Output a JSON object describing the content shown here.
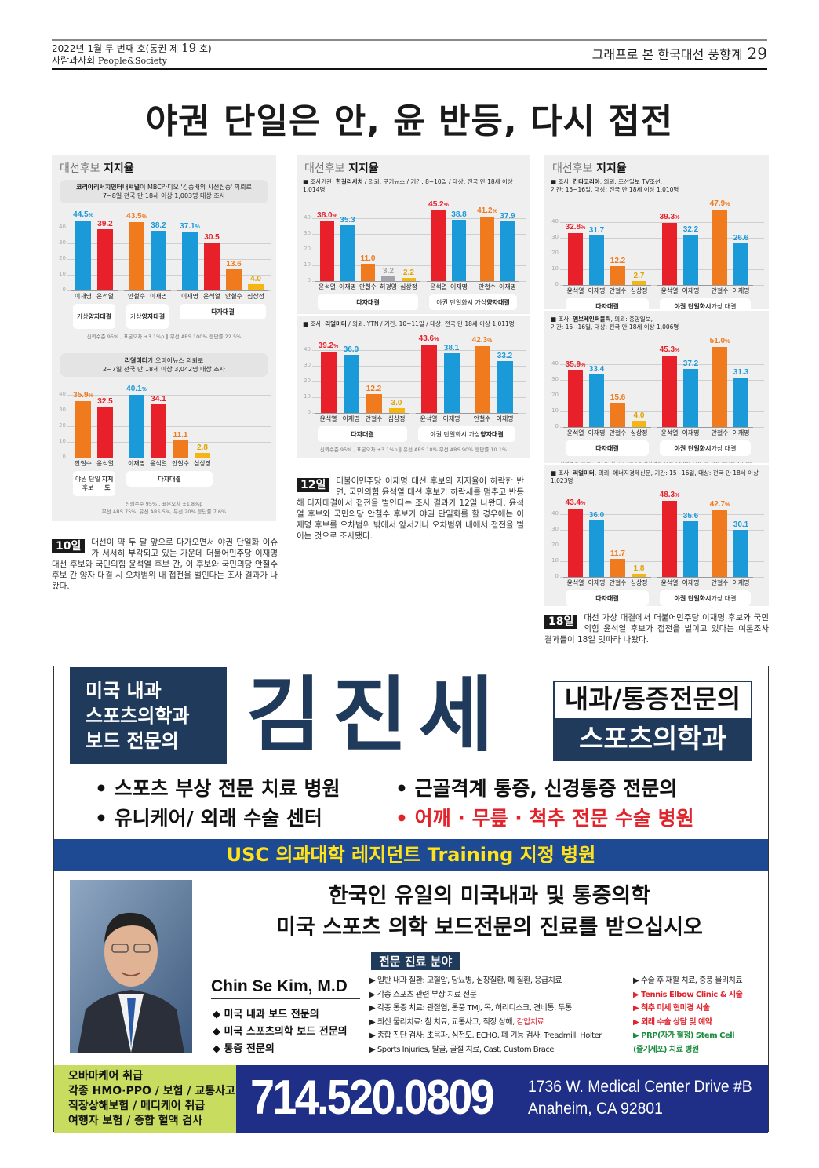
{
  "header": {
    "issue_pre": "2022년 1월 두 번째 호(통권 제 ",
    "issue_num": "19",
    "issue_post": " 호)",
    "paper_kr": "사람과사회 ",
    "paper_en": "People&Society",
    "section": "그래프로 본 한국대선 풍향계",
    "page": "29"
  },
  "headline": "야권 단일은 안, 윤 반등, 다시 접전",
  "palette": {
    "red": "#e8202a",
    "blue": "#1a9ad9",
    "orange": "#f07a1e",
    "yellow": "#f5b614",
    "gray": "#a3a3ab",
    "yellow_label": "#e0a400"
  },
  "chart_data": [
    {
      "type": "bar",
      "title_light": "대선후보",
      "title_bold": "지지율",
      "src_style": "box",
      "source": [
        {
          "t": "코리아리서치인터내셔널",
          "b": true
        },
        {
          "t": "이 MBC라디오 '김종배의 시선집중' 의뢰로\n7~8일 전국 만 18세 이상 1,003명 대상 조사"
        }
      ],
      "yticks": [
        0,
        10,
        20,
        30,
        40
      ],
      "sections": [
        {
          "caption": [
            {
              "t": "가상\n"
            },
            {
              "t": "양자대결",
              "b": true
            }
          ],
          "groups": [
            [
              {
                "name": "이재명",
                "value": 44.5,
                "color": "blue",
                "pct": true
              },
              {
                "name": "윤석열",
                "value": 39.2,
                "color": "red"
              }
            ]
          ]
        },
        {
          "caption": [
            {
              "t": "가상\n"
            },
            {
              "t": "양자대결",
              "b": true
            }
          ],
          "groups": [
            [
              {
                "name": "안철수",
                "value": 43.5,
                "color": "orange",
                "pct": true
              },
              {
                "name": "이재명",
                "value": 38.2,
                "color": "blue"
              }
            ]
          ]
        },
        {
          "caption": [
            {
              "t": "다자대결",
              "b": true
            }
          ],
          "groups": [
            [
              {
                "name": "이재명",
                "value": 37.1,
                "color": "blue",
                "pct": true
              },
              {
                "name": "윤석열",
                "value": 30.5,
                "color": "red"
              },
              {
                "name": "안철수",
                "value": 13.6,
                "color": "orange"
              },
              {
                "name": "심상정",
                "value": 4.0,
                "color": "yellow"
              }
            ]
          ]
        }
      ],
      "footnote": "신뢰수준 95% , 표본오차 ±3.1%p  ‖  무선 ARS 100% 응답률 22.5%"
    },
    {
      "type": "bar",
      "src_style": "box",
      "source": [
        {
          "t": "리얼미터",
          "b": true
        },
        {
          "t": "가 오마이뉴스 의뢰로\n2~7일 전국 만 18세 이상 3,042명 대상 조사"
        }
      ],
      "yticks": [
        0,
        10,
        20,
        30,
        40
      ],
      "sections": [
        {
          "caption": [
            {
              "t": "야권 단일후보\n"
            },
            {
              "t": "지지도",
              "b": true
            }
          ],
          "groups": [
            [
              {
                "name": "안철수",
                "value": 35.9,
                "color": "orange",
                "pct": true
              },
              {
                "name": "윤석열",
                "value": 32.5,
                "color": "red"
              }
            ]
          ]
        },
        {
          "caption": [
            {
              "t": "다자대결",
              "b": true
            }
          ],
          "groups": [
            [
              {
                "name": "이재명",
                "value": 40.1,
                "color": "blue",
                "pct": true
              },
              {
                "name": "윤석열",
                "value": 34.1,
                "color": "red"
              },
              {
                "name": "안철수",
                "value": 11.1,
                "color": "orange"
              },
              {
                "name": "심상정",
                "value": 2.8,
                "color": "yellow"
              }
            ]
          ]
        }
      ],
      "footnote": "신뢰수준 95% , 표본오차 ±1.8%p\n무선 ARS 75%, 유선 ARS 5%, 무선 20% 응답률 7.6%"
    },
    {
      "type": "bar",
      "title_light": "대선후보",
      "title_bold": "지지율",
      "src_style": "line",
      "source": [
        {
          "t": "■ 조사기관: "
        },
        {
          "t": "한길리서치",
          "b": true
        },
        {
          "t": " / 의뢰: 쿠키뉴스 / 기간: 8~10일 / 대상: 전국 만 18세 이상 1,014명"
        }
      ],
      "yticks": [
        0,
        10,
        20,
        30,
        40
      ],
      "sections": [
        {
          "caption": [
            {
              "t": "다자대결",
              "b": true
            }
          ],
          "groups": [
            [
              {
                "name": "윤석열",
                "value": 38.0,
                "color": "red",
                "pct": true
              },
              {
                "name": "이재명",
                "value": 35.3,
                "color": "blue"
              },
              {
                "name": "안철수",
                "value": 11.0,
                "color": "orange"
              },
              {
                "name": "허경영",
                "value": 3.2,
                "color": "gray"
              },
              {
                "name": "심상정",
                "value": 2.2,
                "color": "yellow"
              }
            ]
          ]
        },
        {
          "caption": [
            {
              "t": "야권 단일화시 가상 "
            },
            {
              "t": "양자대결",
              "b": true
            }
          ],
          "groups": [
            [
              {
                "name": "윤석열",
                "value": 45.2,
                "color": "red",
                "pct": true
              },
              {
                "name": "이재명",
                "value": 38.8,
                "color": "blue"
              }
            ],
            [
              {
                "name": "안철수",
                "value": 41.2,
                "color": "orange",
                "pct": true
              },
              {
                "name": "이재명",
                "value": 37.9,
                "color": "blue"
              }
            ]
          ]
        }
      ],
      "footnote": "신뢰수준 95% , 표본오차 ±3.1%p  ‖  유선 전화면접 17.4% 무선 ARS 82.6% 응답률 6.8%"
    },
    {
      "type": "bar",
      "src_style": "line",
      "source": [
        {
          "t": "■ 조사: "
        },
        {
          "t": "리얼미터",
          "b": true
        },
        {
          "t": " / 의뢰: YTN / 기간: 10~11일 / 대상: 전국 만 18세 이상 1,011명"
        }
      ],
      "yticks": [
        0,
        10,
        20,
        30,
        40
      ],
      "sections": [
        {
          "caption": [
            {
              "t": "다자대결",
              "b": true
            }
          ],
          "groups": [
            [
              {
                "name": "윤석열",
                "value": 39.2,
                "color": "red",
                "pct": true
              },
              {
                "name": "이재명",
                "value": 36.9,
                "color": "blue"
              },
              {
                "name": "안철수",
                "value": 12.2,
                "color": "orange"
              },
              {
                "name": "심상정",
                "value": 3.0,
                "color": "yellow"
              }
            ]
          ]
        },
        {
          "caption": [
            {
              "t": "야권 단일화시 가상 "
            },
            {
              "t": "양자대결",
              "b": true
            }
          ],
          "groups": [
            [
              {
                "name": "윤석열",
                "value": 43.6,
                "color": "red",
                "pct": true
              },
              {
                "name": "이재명",
                "value": 38.1,
                "color": "blue"
              }
            ],
            [
              {
                "name": "안철수",
                "value": 42.3,
                "color": "orange",
                "pct": true
              },
              {
                "name": "이재명",
                "value": 33.2,
                "color": "blue"
              }
            ]
          ]
        }
      ],
      "footnote": "신뢰수준 95% , 표본오차 ±3.1%p  ‖  유선 ARS 10% 무선 ARS 90% 응답률 10.1%"
    },
    {
      "type": "bar",
      "title_light": "대선후보",
      "title_bold": "지지율",
      "src_style": "line",
      "source": [
        {
          "t": "■ 조사: "
        },
        {
          "t": "칸타코리아",
          "b": true
        },
        {
          "t": ", 의뢰: 조선일보 TV조선,\n기간: 15~16일, 대상: 전국 만 18세 이상 1,010명"
        }
      ],
      "yticks": [
        0,
        10,
        20,
        30,
        40
      ],
      "sections": [
        {
          "caption": [
            {
              "t": "다자대결",
              "b": true
            }
          ],
          "groups": [
            [
              {
                "name": "윤석열",
                "value": 32.8,
                "color": "red",
                "pct": true
              },
              {
                "name": "이재명",
                "value": 31.7,
                "color": "blue"
              },
              {
                "name": "안철수",
                "value": 12.2,
                "color": "orange"
              },
              {
                "name": "심상정",
                "value": 2.7,
                "color": "yellow"
              }
            ]
          ]
        },
        {
          "caption": [
            {
              "t": "야권 단일화시",
              "b": true
            },
            {
              "t": " 가상 대결"
            }
          ],
          "groups": [
            [
              {
                "name": "윤석열",
                "value": 39.3,
                "color": "red",
                "pct": true
              },
              {
                "name": "이재명",
                "value": 32.2,
                "color": "blue"
              }
            ],
            [
              {
                "name": "안철수",
                "value": 47.9,
                "color": "orange",
                "pct": true
              },
              {
                "name": "이재명",
                "value": 26.6,
                "color": "blue"
              }
            ]
          ]
        }
      ],
      "footnote": "신뢰수준 95% , 표본오차 ±3.1%p  ‖  전화면접 유선 11.8% 무선 88.2% 응답률 10.2%"
    },
    {
      "type": "bar",
      "src_style": "line",
      "source": [
        {
          "t": "■ 조사: "
        },
        {
          "t": "엠브레인퍼블릭",
          "b": true
        },
        {
          "t": ", 의뢰: 중앙일보,\n기간: 15~16일, 대상: 전국 만 18세 이상 1,006명"
        }
      ],
      "yticks": [
        0,
        10,
        20,
        30,
        40
      ],
      "sections": [
        {
          "caption": [
            {
              "t": "다자대결",
              "b": true
            }
          ],
          "groups": [
            [
              {
                "name": "윤석열",
                "value": 35.9,
                "color": "red",
                "pct": true
              },
              {
                "name": "이재명",
                "value": 33.4,
                "color": "blue"
              },
              {
                "name": "안철수",
                "value": 15.6,
                "color": "orange"
              },
              {
                "name": "심상정",
                "value": 4.0,
                "color": "yellow"
              }
            ]
          ]
        },
        {
          "caption": [
            {
              "t": "야권 단일화시",
              "b": true
            },
            {
              "t": " 가상 대결"
            }
          ],
          "groups": [
            [
              {
                "name": "윤석열",
                "value": 45.3,
                "color": "red",
                "pct": true
              },
              {
                "name": "이재명",
                "value": 37.2,
                "color": "blue"
              }
            ],
            [
              {
                "name": "안철수",
                "value": 51.0,
                "color": "orange",
                "pct": true
              },
              {
                "name": "이재명",
                "value": 31.3,
                "color": "blue"
              }
            ]
          ]
        }
      ],
      "footnote": "신뢰수준 95% , 표본오차 ±3.1%p  ‖  전화면접 유선 14.8% 무선 85.2% 응답률 17.1%"
    },
    {
      "type": "bar",
      "src_style": "line",
      "source": [
        {
          "t": "■ 조사: "
        },
        {
          "t": "리얼미터",
          "b": true
        },
        {
          "t": ", 의뢰: 에너지경제신문, 기간: 15~16일, 대상: 전국 만 18세 이상 1,023명"
        }
      ],
      "yticks": [
        0,
        10,
        20,
        30,
        40
      ],
      "sections": [
        {
          "caption": [
            {
              "t": "다자대결",
              "b": true
            }
          ],
          "groups": [
            [
              {
                "name": "윤석열",
                "value": 43.4,
                "color": "red",
                "pct": true
              },
              {
                "name": "이재명",
                "value": 36.0,
                "color": "blue"
              },
              {
                "name": "안철수",
                "value": 11.7,
                "color": "orange"
              },
              {
                "name": "심상정",
                "value": 1.8,
                "color": "yellow"
              }
            ]
          ]
        },
        {
          "caption": [
            {
              "t": "야권 단일화시",
              "b": true
            },
            {
              "t": " 가상 대결"
            }
          ],
          "groups": [
            [
              {
                "name": "윤석열",
                "value": 48.3,
                "color": "red",
                "pct": true
              },
              {
                "name": "이재명",
                "value": 35.6,
                "color": "blue"
              }
            ],
            [
              {
                "name": "안철수",
                "value": 42.7,
                "color": "orange",
                "pct": true
              },
              {
                "name": "이재명",
                "value": 30.1,
                "color": "blue"
              }
            ]
          ]
        }
      ],
      "footnote": "신뢰수준 95% , 표본오차 ±3.1%p  ‖  자동응답조사 유선 5% 무선 95% 응답률 7.9%"
    }
  ],
  "articles": [
    {
      "date": "10일",
      "text": "대선이 약 두 달 앞으로 다가오면서 야권 단일화 이슈가 서서히 부각되고 있는 가운데 더불어민주당 이재명 대선 후보와 국민의힘 윤석열 후보 간, 이 후보와 국민의당 안철수 후보 간 양자 대결 시 오차범위 내 접전을 벌인다는 조사 결과가 나왔다."
    },
    {
      "date": "12일",
      "text": "더불어민주당 이재명 대선 후보의 지지율이 하락한 반면, 국민의힘 윤석열 대선 후보가 하락세를 멈추고 반등해 다자대결에서 접전을 벌인다는 조사 결과가 12일 나왔다. 윤석열 후보와 국민의당 안철수 후보가 야권 단일화를 할 경우에는 이재명 후보를 오차범위 밖에서 앞서거나 오차범위 내에서 접전을 벌이는 것으로 조사됐다."
    },
    {
      "date": "18일",
      "text": "대선 가상 대결에서 더불어민주당 이재명 후보와 국민의힘 윤석열 후보가 접전을 벌이고 있다는 여론조사 결과들이 18일 잇따라 나왔다."
    }
  ],
  "ad": {
    "left_box": [
      "미국 내과",
      "스포츠의학과",
      "보드 전문의"
    ],
    "name": "김진세",
    "spec1": "내과/통증전문의",
    "spec2": "스포츠의학과",
    "bullets": [
      {
        "text": "• 스포츠 부상 전문 치료 병원"
      },
      {
        "text": "• 근골격계 통증, 신경통증 전문의"
      },
      {
        "text": "• 유니케어/ 외래 수술 센터"
      },
      {
        "text": "• 어깨 · 무릎 · 척추 전문 수술 병원",
        "color": "red"
      }
    ],
    "band": "USC 의과대학 레지던트 Training 지정 병원",
    "headline": [
      "한국인 유일의 미국내과 및 통증의학",
      "미국 스포츠 의학 보드전문의 진료를 받으십시오"
    ],
    "doctor": "Chin Se Kim, M.D",
    "credentials": [
      "◆ 미국 내과 보드 전문의",
      "◆ 미국 스포츠의학 보드 전문의",
      "◆ 통증 전문의"
    ],
    "services_title": "전문 진료 분야",
    "services_left": [
      [
        {
          "t": "▶ 일반 내과 질환: 고혈압, 당뇨병, 심장질환, 폐 질환, 응급치료"
        }
      ],
      [
        {
          "t": "▶ 각종 스포츠 관련 부상 치료 전문"
        }
      ],
      [
        {
          "t": "▶ 각종 통증 치료: 관절염, 통풍 TMJ, 목, 허리디스크, 견비통, 두통"
        }
      ],
      [
        {
          "t": "▶ 최신 물리치료: 침 치료, 교통사고, 직장 상해, "
        },
        {
          "t": "감압치료",
          "c": "red"
        }
      ],
      [
        {
          "t": "▶ 종합 진단 검사: 초음파, 심전도, ECHO, 폐 기능 검사, Treadmill, Holter"
        }
      ],
      [
        {
          "t": "▶ Sports Injuries, 탈골, 골절 치료, Cast, Custom Brace"
        }
      ]
    ],
    "services_right": [
      {
        "t": "▶ 수술 후 재활 치료, 중풍 물리치료"
      },
      {
        "t": "▶ Tennis Elbow Clinic & 시술",
        "c": "red"
      },
      {
        "t": "▶ 척추 미세 현미경 시술",
        "c": "red"
      },
      {
        "t": "▶ 외래 수술 상담 및 예약",
        "c": "red"
      },
      {
        "t": "▶ PRP(자가 혈청) Stem Cell",
        "c": "green"
      },
      {
        "t": "(줄기세포) 치료 병원",
        "c": "green"
      }
    ],
    "insurance": [
      "오바마케어 취급",
      "각종 HMO·PPO / 보험 / 교통사고",
      "직장상해보험 / 메디케어 취급",
      "여행자 보험 / 종합 혈액 검사"
    ],
    "phone": "714.520.0809",
    "address": [
      "1736 W. Medical Center Drive #B",
      "Anaheim, CA 92801"
    ]
  }
}
